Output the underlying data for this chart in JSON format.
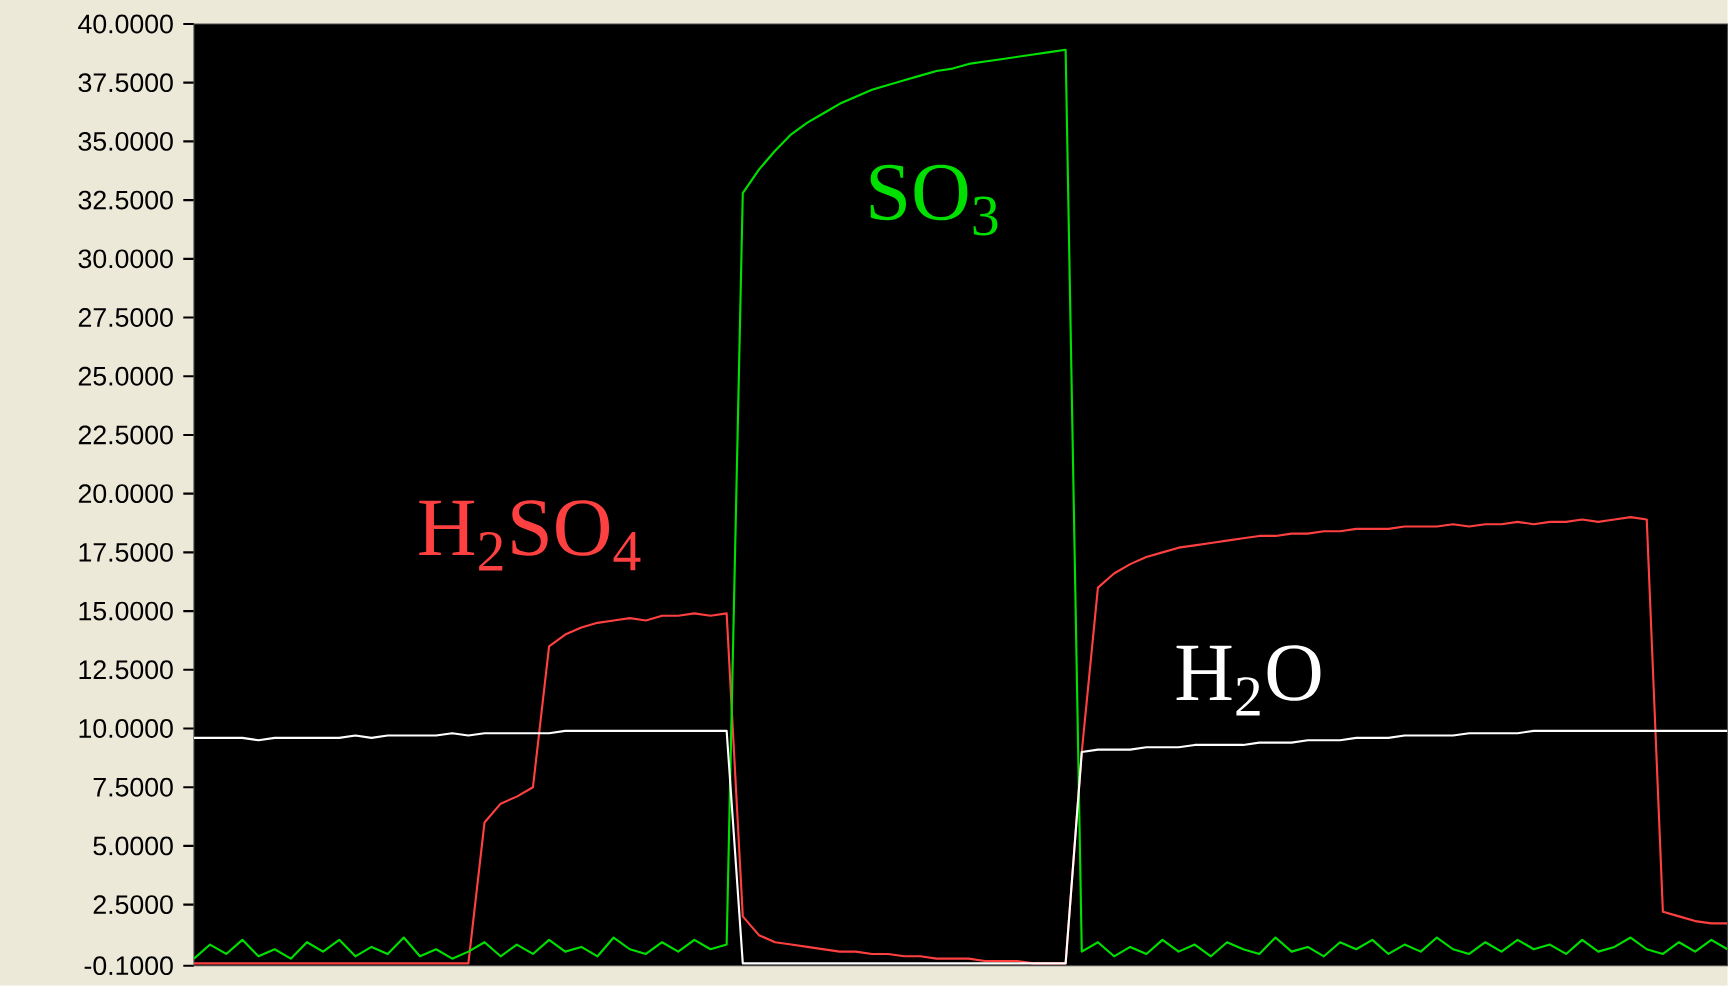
{
  "chart_data": {
    "type": "line",
    "categories": [
      null,
      null,
      null,
      null,
      null,
      null,
      null,
      null,
      null,
      null,
      null,
      null,
      null,
      null,
      null,
      null,
      null,
      null,
      null,
      null,
      null,
      null,
      null,
      null,
      null,
      null,
      null,
      null,
      null,
      null,
      null,
      null,
      null,
      null,
      null,
      null,
      null,
      null,
      null,
      null,
      null,
      null,
      null,
      null,
      null,
      null,
      null,
      null,
      null,
      null,
      null,
      null,
      null,
      null,
      null,
      null,
      null,
      null,
      null,
      null,
      null,
      null,
      null,
      null,
      null,
      null,
      null,
      null,
      null,
      null,
      null,
      null,
      null,
      null,
      null,
      null,
      null,
      null,
      null,
      null,
      null,
      null,
      null,
      null,
      null,
      null,
      null,
      null,
      null,
      null,
      null,
      null,
      null,
      null,
      null,
      null
    ],
    "ylim": [
      -0.1,
      40
    ],
    "yticks": [
      {
        "value": -0.1,
        "label": "-0.1000"
      },
      {
        "value": 2.5,
        "label": "2.5000"
      },
      {
        "value": 5,
        "label": "5.0000"
      },
      {
        "value": 7.5,
        "label": "7.5000"
      },
      {
        "value": 10,
        "label": "10.0000"
      },
      {
        "value": 12.5,
        "label": "12.5000"
      },
      {
        "value": 15,
        "label": "15.0000"
      },
      {
        "value": 17.5,
        "label": "17.5000"
      },
      {
        "value": 20,
        "label": "20.0000"
      },
      {
        "value": 22.5,
        "label": "22.5000"
      },
      {
        "value": 25,
        "label": "25.0000"
      },
      {
        "value": 27.5,
        "label": "27.5000"
      },
      {
        "value": 30,
        "label": "30.0000"
      },
      {
        "value": 32.5,
        "label": "32.5000"
      },
      {
        "value": 35,
        "label": "35.0000"
      },
      {
        "value": 37.5,
        "label": "37.5000"
      },
      {
        "value": 40,
        "label": "40.0000"
      }
    ],
    "tick_labels": "y",
    "series": [
      {
        "name": "H$_{2}$SO$_{4}$",
        "color": "#ff4040",
        "values": [
          0,
          0,
          0,
          0,
          0,
          0,
          0,
          0,
          0,
          0,
          0,
          0,
          0,
          0,
          0,
          0,
          0,
          0,
          6.0,
          6.8,
          7.1,
          7.5,
          13.5,
          14.0,
          14.3,
          14.5,
          14.6,
          14.7,
          14.6,
          14.8,
          14.8,
          14.9,
          14.8,
          14.9,
          2.0,
          1.2,
          0.9,
          0.8,
          0.7,
          0.6,
          0.5,
          0.5,
          0.4,
          0.4,
          0.3,
          0.3,
          0.2,
          0.2,
          0.2,
          0.1,
          0.1,
          0.1,
          0,
          0,
          0,
          9.0,
          16.0,
          16.6,
          17.0,
          17.3,
          17.5,
          17.7,
          17.8,
          17.9,
          18.0,
          18.1,
          18.2,
          18.2,
          18.3,
          18.3,
          18.4,
          18.4,
          18.5,
          18.5,
          18.5,
          18.6,
          18.6,
          18.6,
          18.7,
          18.6,
          18.7,
          18.7,
          18.8,
          18.7,
          18.8,
          18.8,
          18.9,
          18.8,
          18.9,
          19.0,
          18.9,
          2.2,
          2.0,
          1.8,
          1.7,
          1.7
        ]
      },
      {
        "name": "SO$_{3}$",
        "color": "#00e000",
        "values": [
          0.2,
          0.8,
          0.4,
          1.0,
          0.3,
          0.6,
          0.2,
          0.9,
          0.5,
          1.0,
          0.3,
          0.7,
          0.4,
          1.1,
          0.3,
          0.6,
          0.2,
          0.5,
          0.9,
          0.3,
          0.8,
          0.4,
          1.0,
          0.5,
          0.7,
          0.3,
          1.1,
          0.6,
          0.4,
          0.9,
          0.5,
          1.0,
          0.6,
          0.8,
          32.8,
          33.8,
          34.6,
          35.3,
          35.8,
          36.2,
          36.6,
          36.9,
          37.2,
          37.4,
          37.6,
          37.8,
          38.0,
          38.1,
          38.3,
          38.4,
          38.5,
          38.6,
          38.7,
          38.8,
          38.9,
          0.5,
          0.9,
          0.3,
          0.7,
          0.4,
          1.0,
          0.5,
          0.8,
          0.3,
          0.9,
          0.6,
          0.4,
          1.1,
          0.5,
          0.7,
          0.3,
          0.9,
          0.6,
          1.0,
          0.4,
          0.8,
          0.5,
          1.1,
          0.6,
          0.4,
          0.9,
          0.5,
          1.0,
          0.6,
          0.8,
          0.4,
          1.0,
          0.5,
          0.7,
          1.1,
          0.6,
          0.4,
          0.9,
          0.5,
          1.0,
          0.6
        ]
      },
      {
        "name": "H$_{2}$O",
        "color": "#ffffff",
        "values": [
          9.6,
          9.6,
          9.6,
          9.6,
          9.5,
          9.6,
          9.6,
          9.6,
          9.6,
          9.6,
          9.7,
          9.6,
          9.7,
          9.7,
          9.7,
          9.7,
          9.8,
          9.7,
          9.8,
          9.8,
          9.8,
          9.8,
          9.8,
          9.9,
          9.9,
          9.9,
          9.9,
          9.9,
          9.9,
          9.9,
          9.9,
          9.9,
          9.9,
          9.9,
          0,
          0,
          0,
          0,
          0,
          0,
          0,
          0,
          0,
          0,
          0,
          0,
          0,
          0,
          0,
          0,
          0,
          0,
          0,
          0,
          0,
          9.0,
          9.1,
          9.1,
          9.1,
          9.2,
          9.2,
          9.2,
          9.3,
          9.3,
          9.3,
          9.3,
          9.4,
          9.4,
          9.4,
          9.5,
          9.5,
          9.5,
          9.6,
          9.6,
          9.6,
          9.7,
          9.7,
          9.7,
          9.7,
          9.8,
          9.8,
          9.8,
          9.8,
          9.9,
          9.9,
          9.9,
          9.9,
          9.9,
          9.9,
          9.9,
          9.9,
          9.9,
          9.9,
          9.9,
          9.9,
          9.9
        ]
      }
    ]
  }
}
